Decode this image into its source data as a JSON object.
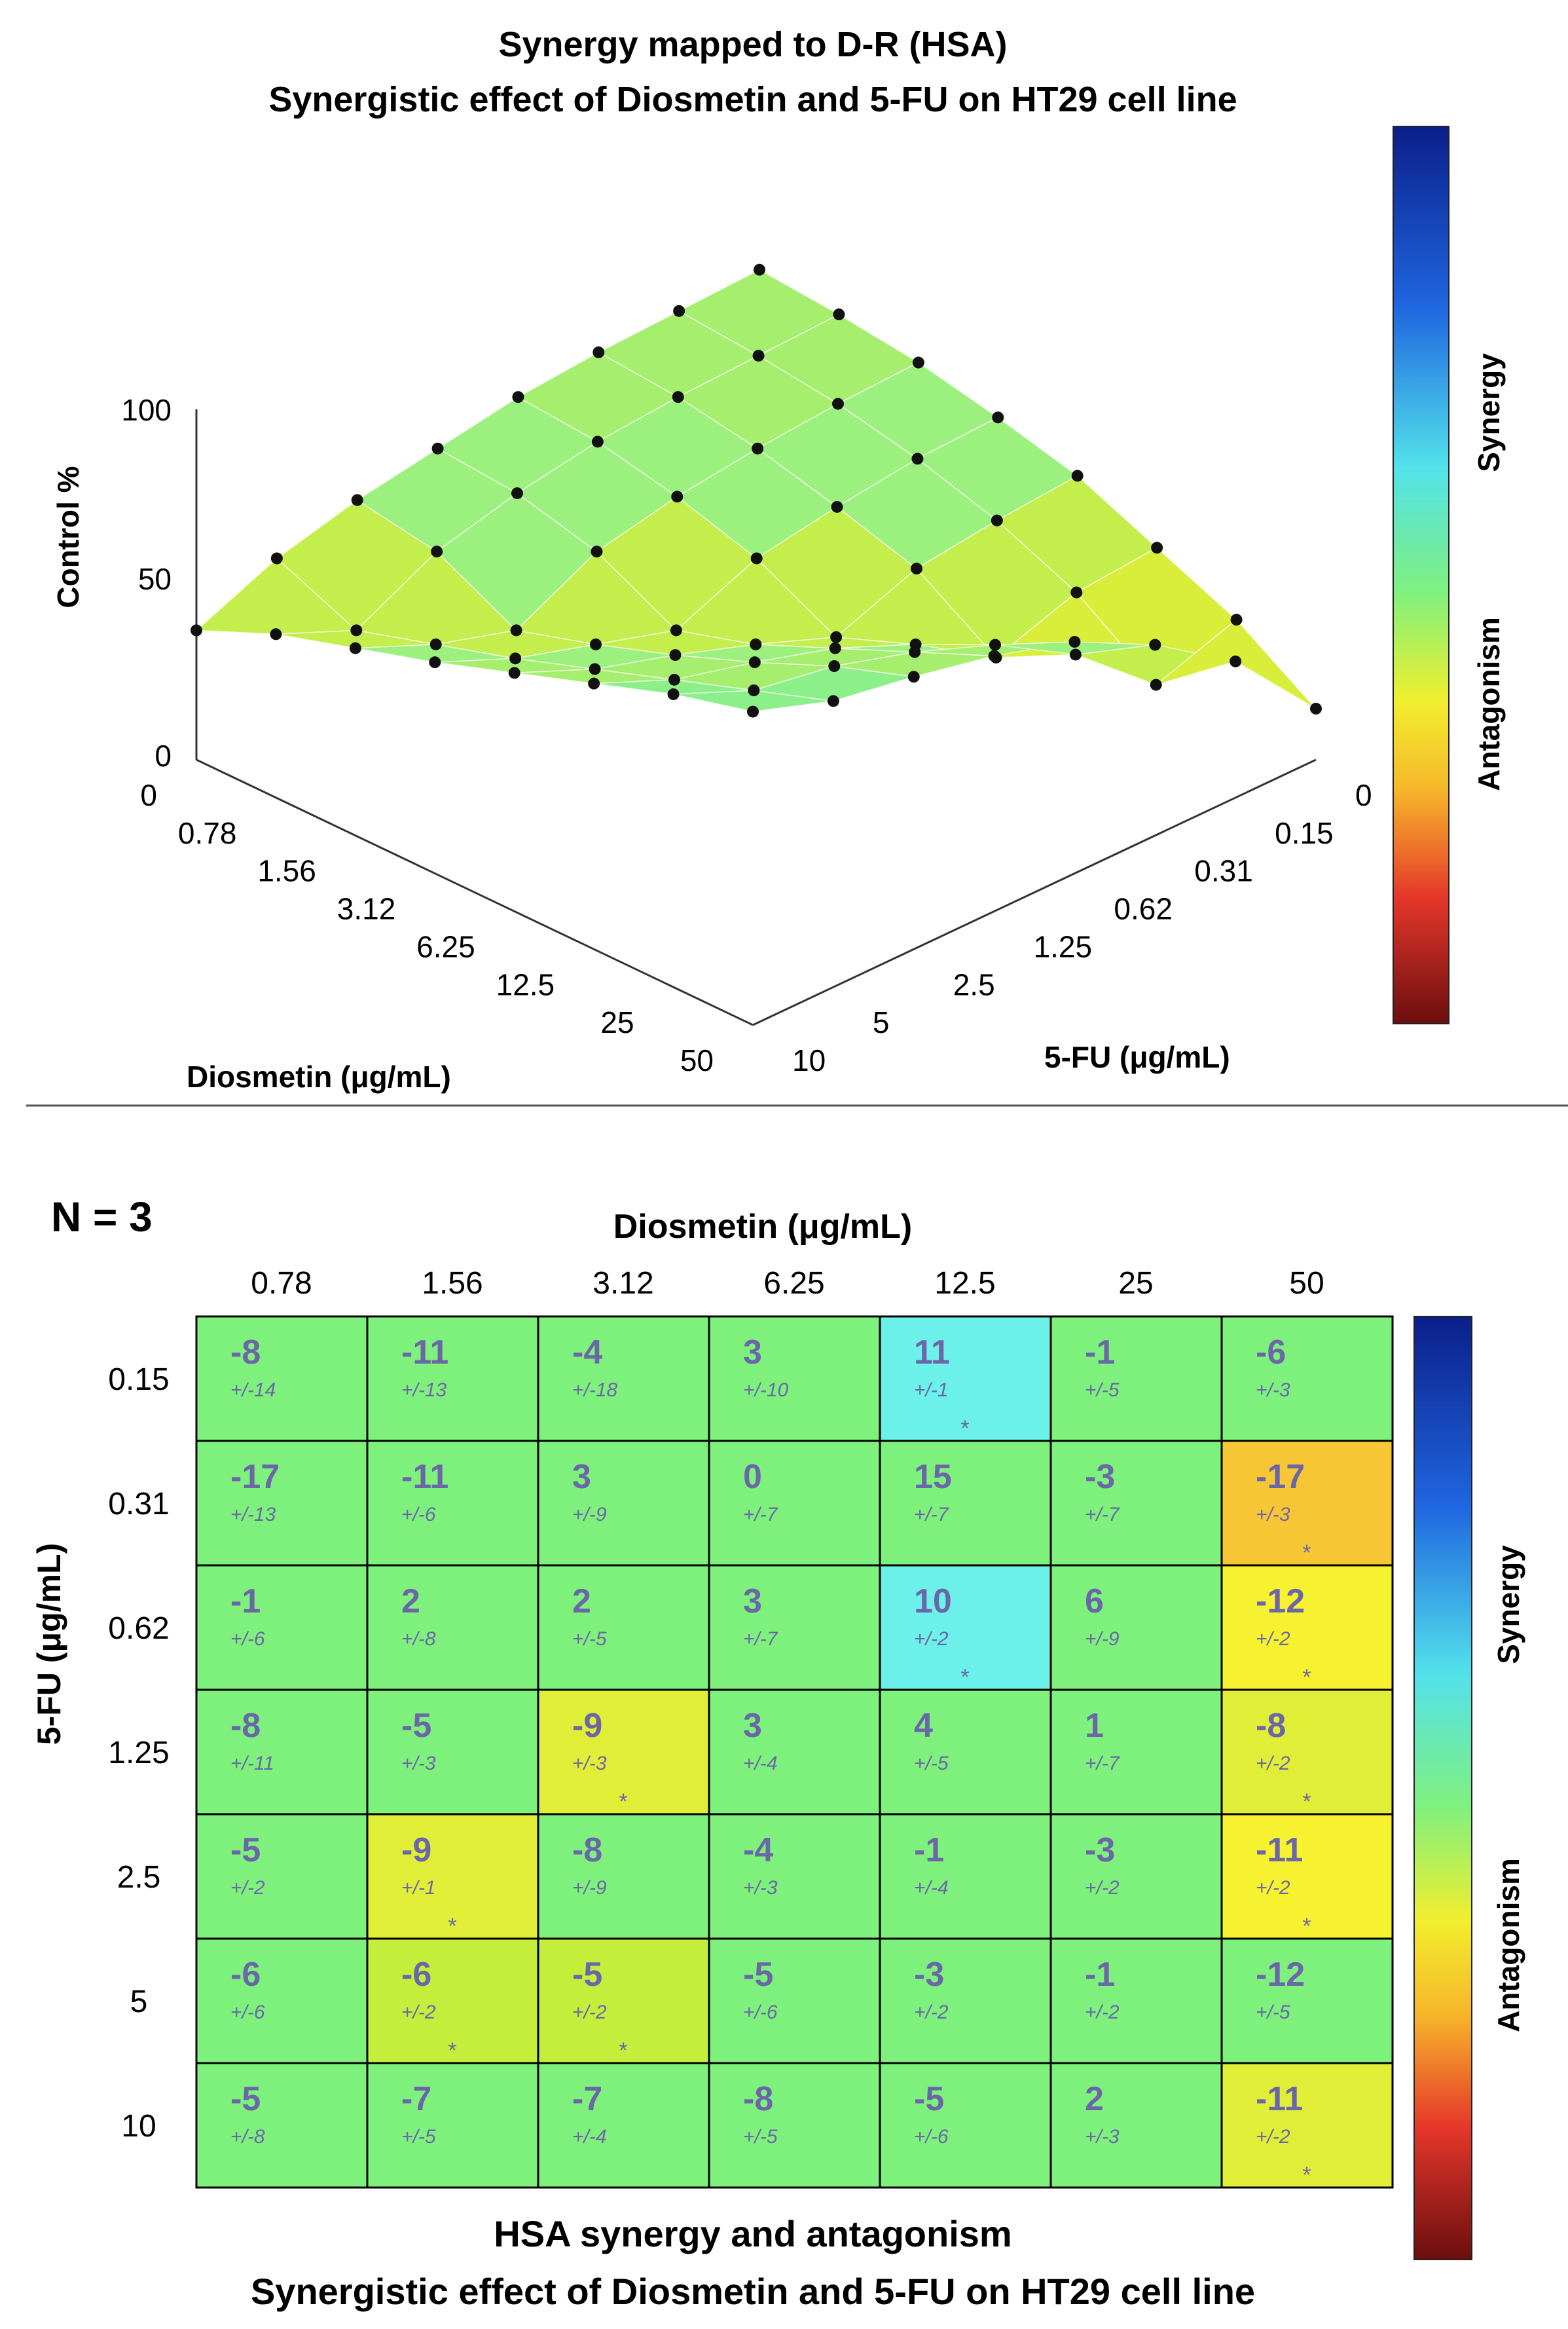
{
  "chart_data": [
    {
      "type": "surface3d",
      "title": "Synergy mapped to D-R (HSA)",
      "subtitle": "Synergistic effect of Diosmetin and 5-FU on HT29 cell line",
      "zlabel": "Control %",
      "zticks": [
        "100",
        "50",
        "0"
      ],
      "zlim": [
        0,
        100
      ],
      "xlabel": "Diosmetin (μg/mL)",
      "x_ticks": [
        "0",
        "0.78",
        "1.56",
        "3.12",
        "6.25",
        "12.5",
        "25",
        "50"
      ],
      "ylabel": "5-FU (μg/mL)",
      "y_ticks": [
        "0",
        "0.15",
        "0.31",
        "0.62",
        "1.25",
        "2.5",
        "5",
        "10"
      ],
      "colorbar": {
        "top_label": "Synergy",
        "bottom_label": "Antagonism"
      },
      "z_values": [
        [
          38,
          48,
          55,
          62,
          70,
          78,
          86,
          92
        ],
        [
          48,
          38,
          45,
          52,
          60,
          68,
          76,
          84
        ],
        [
          54,
          50,
          38,
          45,
          53,
          62,
          72,
          80
        ],
        [
          58,
          56,
          50,
          38,
          45,
          55,
          65,
          75
        ],
        [
          62,
          60,
          55,
          48,
          36,
          45,
          56,
          68
        ],
        [
          64,
          62,
          58,
          52,
          45,
          30,
          42,
          56
        ],
        [
          65,
          63,
          60,
          55,
          48,
          38,
          22,
          40
        ],
        [
          66,
          64,
          61,
          56,
          50,
          40,
          30,
          15
        ]
      ]
    },
    {
      "type": "heatmap",
      "annotation": "N = 3",
      "title": "HSA synergy and antagonism",
      "subtitle": "Synergistic effect of Diosmetin and 5-FU on HT29 cell line",
      "xlabel": "Diosmetin (μg/mL)",
      "ylabel": "5-FU (μg/mL)",
      "x_ticks": [
        "0.78",
        "1.56",
        "3.12",
        "6.25",
        "12.5",
        "25",
        "50"
      ],
      "y_ticks": [
        "0.15",
        "0.31",
        "0.62",
        "1.25",
        "2.5",
        "5",
        "10"
      ],
      "colorbar": {
        "top_label": "Synergy",
        "bottom_label": "Antagonism"
      },
      "values": [
        [
          "-8",
          "-11",
          "-4",
          "3",
          "11",
          "-1",
          "-6"
        ],
        [
          "-17",
          "-11",
          "3",
          "0",
          "15",
          "-3",
          "-17"
        ],
        [
          "-1",
          "2",
          "2",
          "3",
          "10",
          "6",
          "-12"
        ],
        [
          "-8",
          "-5",
          "-9",
          "3",
          "4",
          "1",
          "-8"
        ],
        [
          "-5",
          "-9",
          "-8",
          "-4",
          "-1",
          "-3",
          "-11"
        ],
        [
          "-6",
          "-6",
          "-5",
          "-5",
          "-3",
          "-1",
          "-12"
        ],
        [
          "-5",
          "-7",
          "-7",
          "-8",
          "-5",
          "2",
          "-11"
        ]
      ],
      "errors": [
        [
          "+/-14",
          "+/-13",
          "+/-18",
          "+/-10",
          "+/-1",
          "+/-5",
          "+/-3"
        ],
        [
          "+/-13",
          "+/-6",
          "+/-9",
          "+/-7",
          "+/-7",
          "+/-7",
          "+/-3"
        ],
        [
          "+/-6",
          "+/-8",
          "+/-5",
          "+/-7",
          "+/-2",
          "+/-9",
          "+/-2"
        ],
        [
          "+/-11",
          "+/-3",
          "+/-3",
          "+/-4",
          "+/-5",
          "+/-7",
          "+/-2"
        ],
        [
          "+/-2",
          "+/-1",
          "+/-9",
          "+/-3",
          "+/-4",
          "+/-2",
          "+/-2"
        ],
        [
          "+/-6",
          "+/-2",
          "+/-2",
          "+/-6",
          "+/-2",
          "+/-2",
          "+/-5"
        ],
        [
          "+/-8",
          "+/-5",
          "+/-4",
          "+/-5",
          "+/-6",
          "+/-3",
          "+/-2"
        ]
      ],
      "significant": [
        [
          false,
          false,
          false,
          false,
          true,
          false,
          false
        ],
        [
          false,
          false,
          false,
          false,
          false,
          false,
          true
        ],
        [
          false,
          false,
          false,
          false,
          true,
          false,
          true
        ],
        [
          false,
          false,
          true,
          false,
          false,
          false,
          true
        ],
        [
          false,
          true,
          false,
          false,
          false,
          false,
          true
        ],
        [
          false,
          true,
          true,
          false,
          false,
          false,
          false
        ],
        [
          false,
          false,
          false,
          false,
          false,
          false,
          true
        ]
      ],
      "significance_marker": "*",
      "cell_colors": [
        [
          "#7ef17d",
          "#7ef17d",
          "#7ef17d",
          "#7ef17d",
          "#6cf0ea",
          "#7ef17d",
          "#7ef17d"
        ],
        [
          "#7ef17d",
          "#7ef17d",
          "#7ef17d",
          "#7ef17d",
          "#7ef17d",
          "#7ef17d",
          "#f7c634"
        ],
        [
          "#7ef17d",
          "#7ef17d",
          "#7ef17d",
          "#7ef17d",
          "#6cf0ea",
          "#7ef17d",
          "#f6f22f"
        ],
        [
          "#7ef17d",
          "#7ef17d",
          "#e0ee37",
          "#7ef17d",
          "#7ef17d",
          "#7ef17d",
          "#e0ee37"
        ],
        [
          "#7ef17d",
          "#e0ee37",
          "#7ef17d",
          "#7ef17d",
          "#7ef17d",
          "#7ef17d",
          "#f6f22f"
        ],
        [
          "#7ef17d",
          "#c4ee3c",
          "#c4ee3c",
          "#7ef17d",
          "#7ef17d",
          "#7ef17d",
          "#7ef17d"
        ],
        [
          "#7ef17d",
          "#7ef17d",
          "#7ef17d",
          "#7ef17d",
          "#7ef17d",
          "#7ef17d",
          "#e0ee37"
        ]
      ]
    }
  ],
  "colors": {
    "text_value": "#6b66a8",
    "text_error": "#6b66a8",
    "grid_line": "#000000"
  }
}
